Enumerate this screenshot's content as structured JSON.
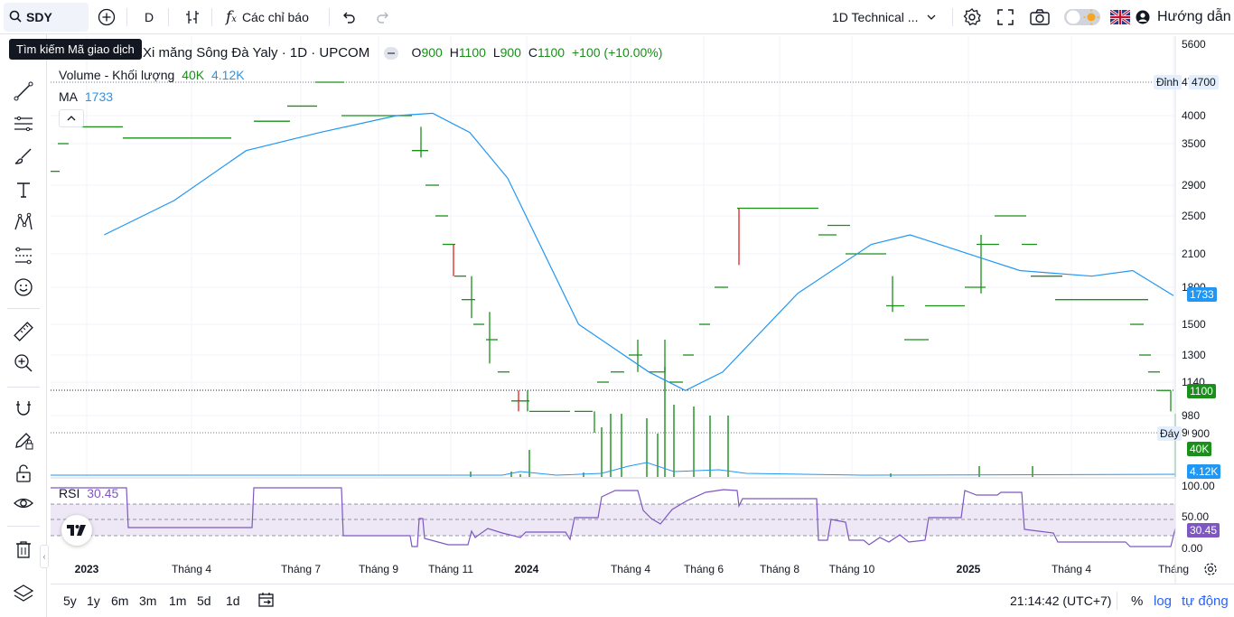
{
  "search": {
    "symbol": "SDY",
    "tooltip": "Tìm kiếm Mã giao dịch"
  },
  "toolbar": {
    "interval": "D",
    "indicators_label": "Các chỉ báo",
    "layout_label": "1D Technical ...",
    "guide_label": "Hướng dẫn"
  },
  "legend": {
    "title": "Xi măng Sông Đà Yaly · 1D · UPCOM",
    "o_label": "O",
    "o_value": "900",
    "h_label": "H",
    "h_value": "1100",
    "l_label": "L",
    "l_value": "900",
    "c_label": "C",
    "c_value": "1100",
    "change": "+100 (+10.00%)",
    "volume_label": "Volume - Khối lượng",
    "volume_value": "40K",
    "volume_ma": "4.12K",
    "ma_label": "MA",
    "ma_value": "1733",
    "rsi_label": "RSI",
    "rsi_value": "30.45"
  },
  "price_axis": {
    "ticks": [
      "5600",
      "4700",
      "4000",
      "3500",
      "2900",
      "2500",
      "2100",
      "1800",
      "1500",
      "1300",
      "1140",
      "980",
      "900"
    ]
  },
  "price_tags": {
    "high_label": "Đỉnh",
    "high_value": "4700",
    "ma_value": "1733",
    "close_value": "1100",
    "low_label": "Đáy",
    "low_value": "900",
    "volume_value": "40K",
    "volume_ma_value": "4.12K"
  },
  "rsi_axis": {
    "ticks": [
      "100.00",
      "50.00",
      "0.00"
    ],
    "current": "30.45"
  },
  "time_axis": {
    "labels": [
      "2023",
      "Tháng 4",
      "Tháng 7",
      "Tháng 9",
      "Tháng 11",
      "2024",
      "Tháng 4",
      "Tháng 6",
      "Tháng 8",
      "Tháng 10",
      "2025",
      "Tháng 4",
      "Tháng"
    ]
  },
  "ranges": [
    "5y",
    "1y",
    "6m",
    "3m",
    "1m",
    "5d",
    "1d"
  ],
  "footer": {
    "clock": "21:14:42 (UTC+7)",
    "percent": "%",
    "log": "log",
    "auto": "tự động"
  },
  "colors": {
    "up": "#089981",
    "up_bar": "#1a8f1a",
    "down": "#e21f1f",
    "ma": "#2196f3",
    "rsi": "#7e57c2",
    "rsi_band": "#ede7f6"
  },
  "chart_data": {
    "type": "line",
    "title": "Xi măng Sông Đà Yaly · 1D · UPCOM",
    "ma": [
      {
        "x": "2023-01",
        "y": 2300
      },
      {
        "x": "2023-03",
        "y": 2700
      },
      {
        "x": "2023-05",
        "y": 3400
      },
      {
        "x": "2023-07",
        "y": 3700
      },
      {
        "x": "2023-09",
        "y": 4000
      },
      {
        "x": "2023-10",
        "y": 4050
      },
      {
        "x": "2023-11",
        "y": 3700
      },
      {
        "x": "2023-12",
        "y": 3000
      },
      {
        "x": "2024-02",
        "y": 1500
      },
      {
        "x": "2024-04",
        "y": 1200
      },
      {
        "x": "2024-05",
        "y": 1100
      },
      {
        "x": "2024-06",
        "y": 1200
      },
      {
        "x": "2024-08",
        "y": 1750
      },
      {
        "x": "2024-10",
        "y": 2200
      },
      {
        "x": "2024-11",
        "y": 2300
      },
      {
        "x": "2025-01",
        "y": 2050
      },
      {
        "x": "2025-02",
        "y": 1950
      },
      {
        "x": "2025-04",
        "y": 1900
      },
      {
        "x": "2025-05",
        "y": 1950
      },
      {
        "x": "2025-06",
        "y": 1733
      }
    ],
    "ylim": [
      900,
      5600
    ],
    "rsi_ylim": [
      0,
      100
    ]
  }
}
